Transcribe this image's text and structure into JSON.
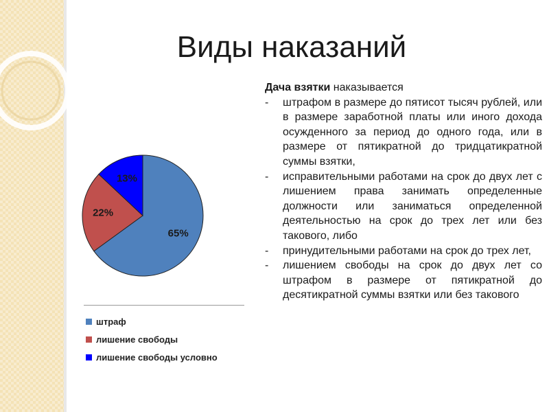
{
  "title": "Виды наказаний",
  "text": {
    "intro_bold": "Дача взятки",
    "intro_rest": " наказывается",
    "items": [
      "штрафом в размере до пятисот тысяч рублей, или в размере заработной платы или иного дохода осужденного за период до одного года, или в размере от пятикратной до тридцатикратной суммы взятки,",
      "исправительными работами на срок до двух лет с лишением права занимать определенные должности или заниматься определенной деятельностью на срок до трех лет или без такового, либо",
      "принудительными работами на срок до трех лет,",
      "лишением свободы на срок до двух лет со штрафом в размере от пятикратной до десятикратной суммы взятки или без такового"
    ]
  },
  "chart_data": {
    "type": "pie",
    "categories": [
      "штраф",
      "лишение свободы",
      "лишение свободы условно"
    ],
    "values": [
      65,
      22,
      13
    ],
    "data_labels": [
      "65%",
      "22%",
      "13%"
    ],
    "colors": [
      "#4f81bd",
      "#c0504d",
      "#0000ff"
    ],
    "legend_position": "bottom"
  }
}
